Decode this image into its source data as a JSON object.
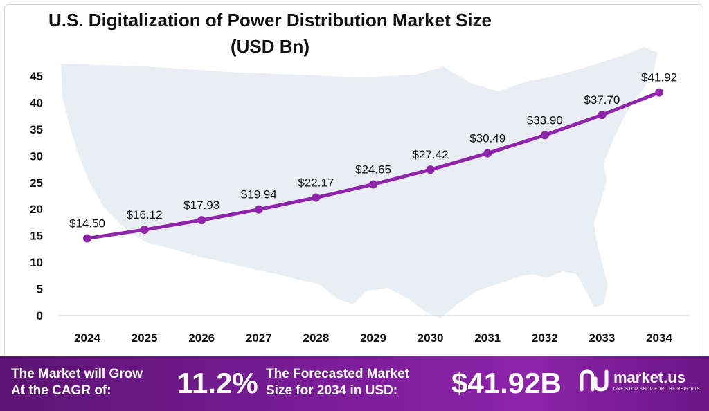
{
  "title_line1": "U.S. Digitalization of Power Distribution Market Size",
  "title_line2": "(USD Bn)",
  "chart_data": {
    "type": "line",
    "title": "U.S. Digitalization of Power Distribution Market Size (USD Bn)",
    "categories": [
      "2024",
      "2025",
      "2026",
      "2027",
      "2028",
      "2029",
      "2030",
      "2031",
      "2032",
      "2033",
      "2034"
    ],
    "series": [
      {
        "values": [
          14.5,
          16.12,
          17.93,
          19.94,
          22.17,
          24.65,
          27.42,
          30.49,
          33.9,
          37.7,
          41.92
        ],
        "labels": [
          "$14.50",
          "$16.12",
          "$17.93",
          "$19.94",
          "$22.17",
          "$24.65",
          "$27.42",
          "$30.49",
          "$33.90",
          "$37.70",
          "$41.92"
        ],
        "color": "#8e24aa"
      }
    ],
    "ylim": [
      0,
      45
    ],
    "yticks": [
      0,
      5,
      10,
      15,
      20,
      25,
      30,
      35,
      40,
      45
    ],
    "grid": false,
    "legend": "none"
  },
  "footer": {
    "cagr_text_line1": "The Market will Grow",
    "cagr_text_line2": "At the CAGR of:",
    "cagr_value": "11.2%",
    "forecast_text_line1": "The Forecasted Market",
    "forecast_text_line2": "Size for 2034 in USD:",
    "forecast_value": "$41.92B",
    "brand_name": "market.us",
    "brand_tagline": "ONE STOP SHOP FOR THE REPORTS"
  },
  "colors": {
    "line": "#8e24aa",
    "footer_bg": "#7a1c98",
    "map": "#e8eef4"
  },
  "icons": [
    "us-map-background",
    "market-us-logo-icon"
  ]
}
